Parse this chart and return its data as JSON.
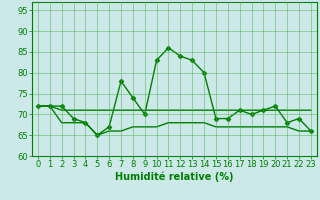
{
  "x": [
    0,
    1,
    2,
    3,
    4,
    5,
    6,
    7,
    8,
    9,
    10,
    11,
    12,
    13,
    14,
    15,
    16,
    17,
    18,
    19,
    20,
    21,
    22,
    23
  ],
  "y_main": [
    72,
    72,
    72,
    69,
    68,
    65,
    67,
    78,
    74,
    70,
    83,
    86,
    84,
    83,
    80,
    69,
    69,
    71,
    70,
    71,
    72,
    68,
    69,
    66
  ],
  "y_upper_band": [
    72,
    72,
    71,
    71,
    71,
    71,
    71,
    71,
    71,
    71,
    71,
    71,
    71,
    71,
    71,
    71,
    71,
    71,
    71,
    71,
    71,
    71,
    71,
    71
  ],
  "y_lower_band": [
    72,
    72,
    68,
    68,
    68,
    65,
    66,
    66,
    67,
    67,
    67,
    68,
    68,
    68,
    68,
    67,
    67,
    67,
    67,
    67,
    67,
    67,
    66,
    66
  ],
  "line_color": "#008000",
  "bg_color": "#cce8e8",
  "grid_color": "#44aa44",
  "xlabel": "Humidité relative (%)",
  "ylim": [
    60,
    97
  ],
  "xlim": [
    -0.5,
    23.5
  ],
  "yticks": [
    60,
    65,
    70,
    75,
    80,
    85,
    90,
    95
  ],
  "xticks": [
    0,
    1,
    2,
    3,
    4,
    5,
    6,
    7,
    8,
    9,
    10,
    11,
    12,
    13,
    14,
    15,
    16,
    17,
    18,
    19,
    20,
    21,
    22,
    23
  ],
  "xlabel_fontsize": 7.0,
  "tick_fontsize": 6.0
}
